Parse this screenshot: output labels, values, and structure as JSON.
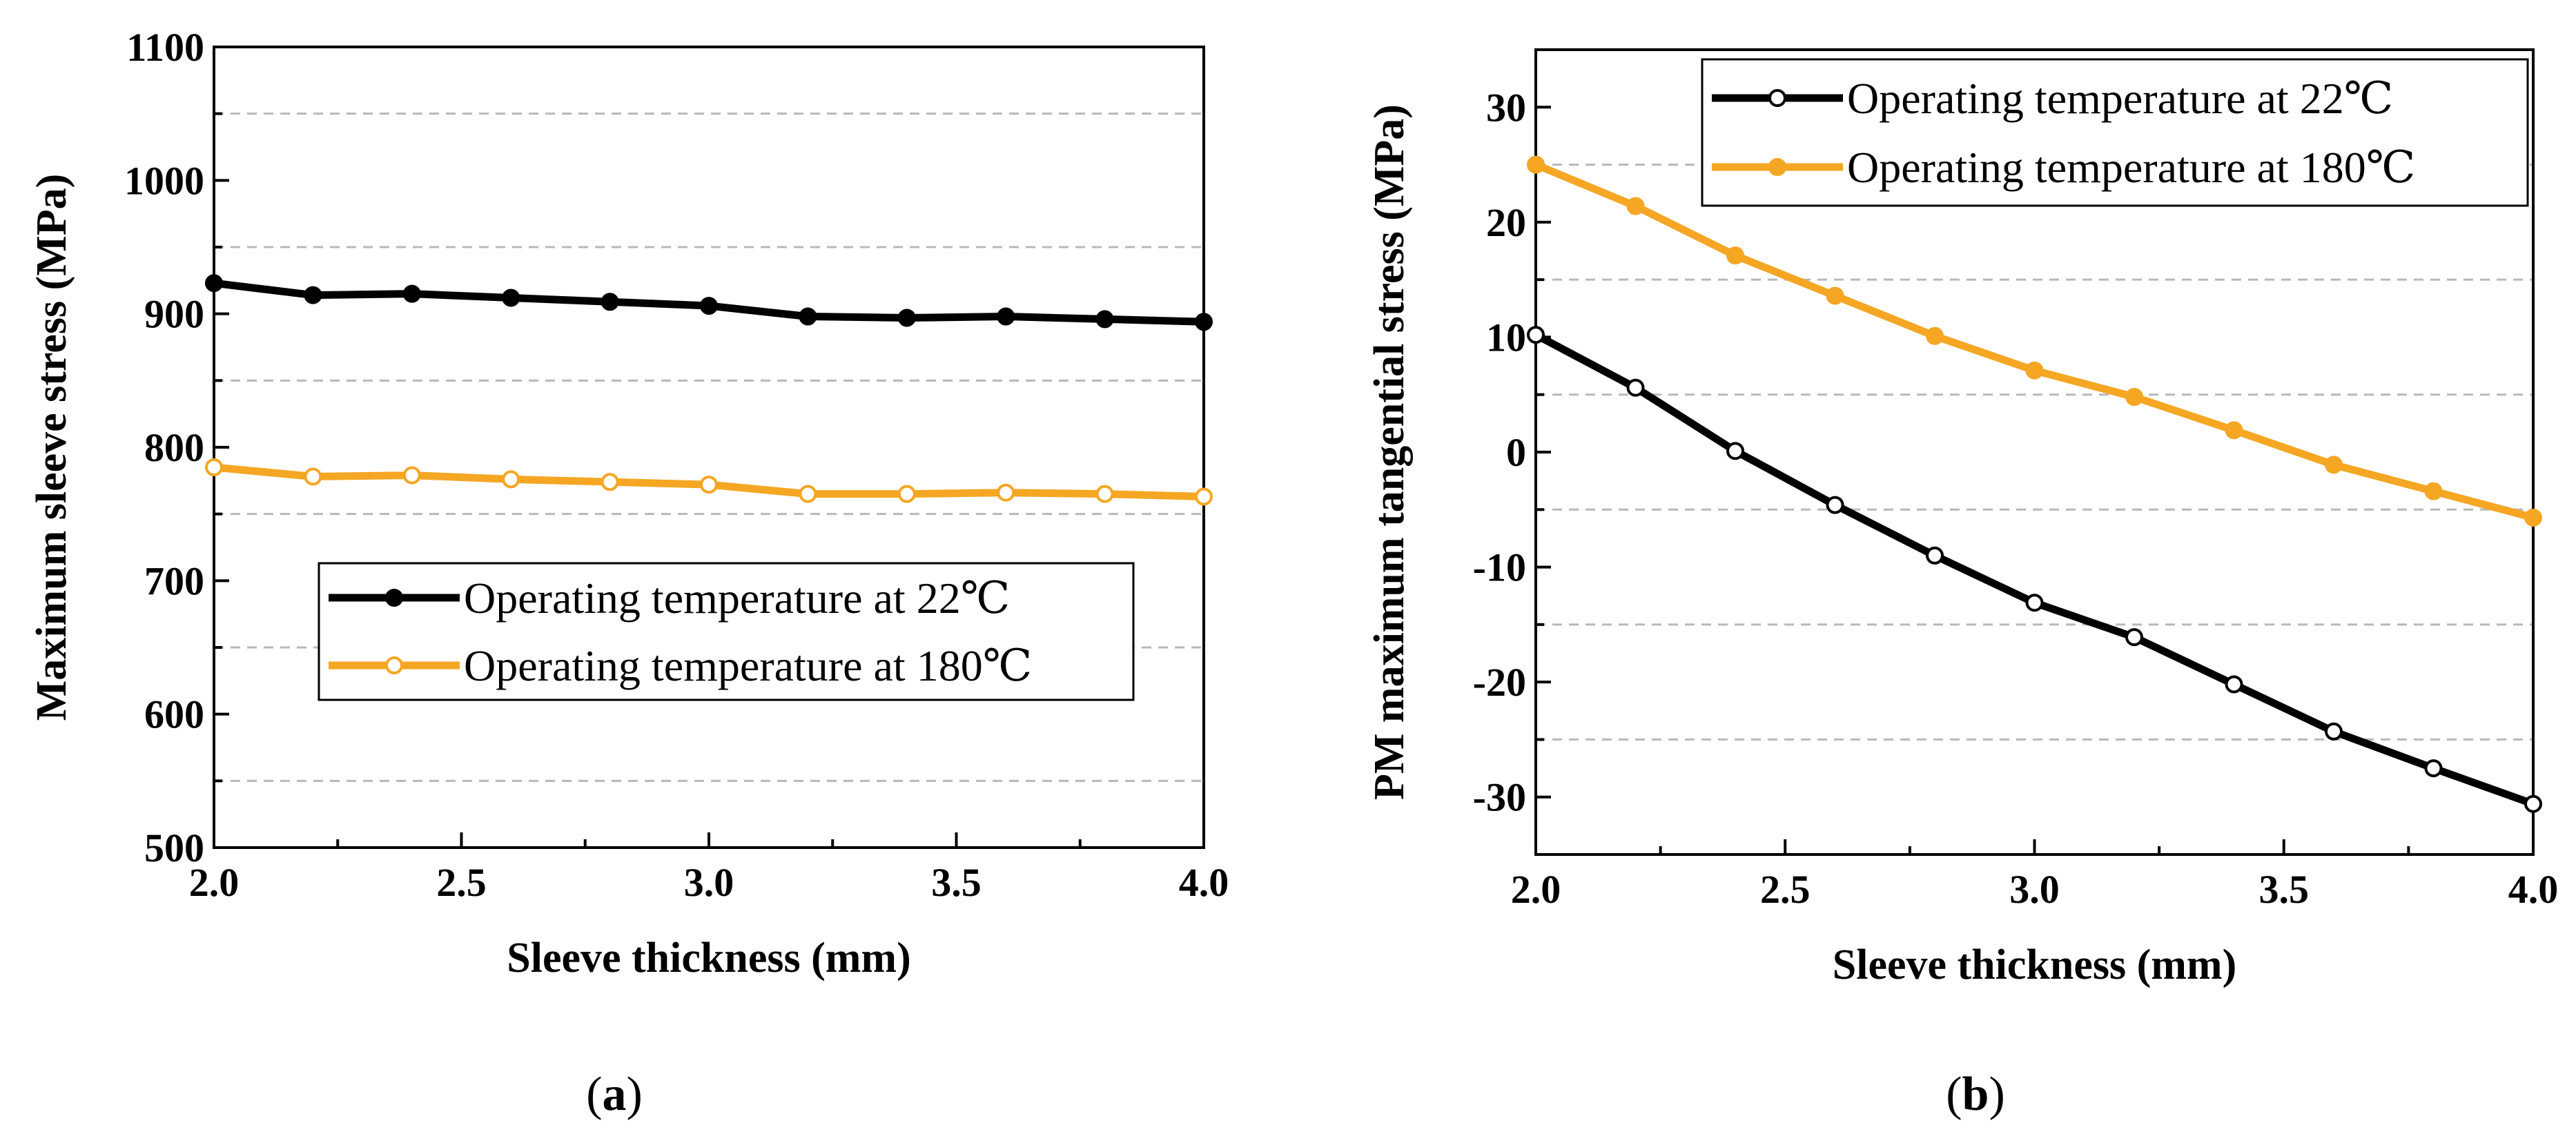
{
  "figure": {
    "panels": [
      {
        "letter": "a"
      },
      {
        "letter": "b"
      }
    ]
  },
  "chart_data": [
    {
      "type": "line",
      "panel": "(a)",
      "title": "",
      "xlabel": "Sleeve thickness (mm)",
      "ylabel": "Maximum sleeve stress (MPa)",
      "xlim": [
        2.0,
        4.0
      ],
      "ylim": [
        500,
        1100
      ],
      "xticks": [
        2.0,
        2.5,
        3.0,
        3.5,
        4.0
      ],
      "xtick_labels": [
        "2.0",
        "2.5",
        "3.0",
        "3.5",
        "4.0"
      ],
      "yticks": [
        500,
        600,
        700,
        800,
        900,
        1000,
        1100
      ],
      "ytick_labels": [
        "500",
        "600",
        "700",
        "800",
        "900",
        "1000",
        "1100"
      ],
      "grid": "horizontal dashed at 550, 650, 750, 850, 950, 1050",
      "legend_position": "center-right",
      "x": [
        2.0,
        2.2,
        2.4,
        2.6,
        2.8,
        3.0,
        3.2,
        3.4,
        3.6,
        3.8,
        4.0
      ],
      "series": [
        {
          "name": "Operating temperature at 22℃",
          "color": "#000000",
          "marker": "filled",
          "values": [
            923,
            914,
            915,
            912,
            909,
            906,
            898,
            897,
            898,
            896,
            894
          ]
        },
        {
          "name": "Operating temperature at 180℃",
          "color": "#f5a623",
          "marker": "open",
          "values": [
            785,
            778,
            779,
            776,
            774,
            772,
            765,
            765,
            766,
            765,
            763
          ]
        }
      ]
    },
    {
      "type": "line",
      "panel": "(b)",
      "title": "",
      "xlabel": "Sleeve thickness (mm)",
      "ylabel": "PM maximum tangential stress (MPa)",
      "xlim": [
        2.0,
        4.0
      ],
      "ylim": [
        -35,
        35
      ],
      "xticks": [
        2.0,
        2.5,
        3.0,
        3.5,
        4.0
      ],
      "xtick_labels": [
        "2.0",
        "2.5",
        "3.0",
        "3.5",
        "4.0"
      ],
      "yticks": [
        -30,
        -20,
        -10,
        0,
        10,
        20,
        30
      ],
      "ytick_labels": [
        "-30",
        "-20",
        "-10",
        "0",
        "10",
        "20",
        "30"
      ],
      "grid": "horizontal dashed at -25, -15, -5, 5, 15, 25",
      "legend_position": "top-right",
      "x": [
        2.0,
        2.2,
        2.4,
        2.6,
        2.8,
        3.0,
        3.2,
        3.4,
        3.6,
        3.8,
        4.0
      ],
      "series": [
        {
          "name": "Operating temperature at 22℃",
          "color": "#000000",
          "marker": "open",
          "values": [
            10.2,
            5.6,
            0.1,
            -4.6,
            -9.0,
            -13.1,
            -16.1,
            -20.2,
            -24.3,
            -27.5,
            -30.6
          ]
        },
        {
          "name": "Operating temperature at 180℃",
          "color": "#f5a623",
          "marker": "filled",
          "values": [
            25.0,
            21.4,
            17.1,
            13.6,
            10.1,
            7.1,
            4.8,
            1.9,
            -1.1,
            -3.4,
            -5.7
          ]
        }
      ]
    }
  ]
}
